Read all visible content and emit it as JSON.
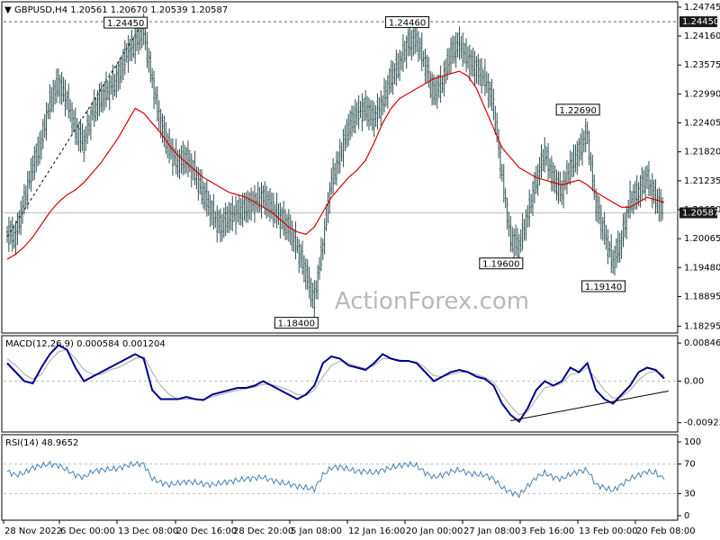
{
  "colors": {
    "background": "#ffffff",
    "candle": "#2f4f4f",
    "ma": "#d80000",
    "macd": "#00008b",
    "signal": "#a9a9a9",
    "rsi": "#4682b4",
    "border": "#000000",
    "grid": "#c0c0c0",
    "watermark": "#b8b8b8"
  },
  "chart_data": [
    {
      "type": "line",
      "panel": "price",
      "header": "GBPUSD,H4  1.20561 1.20670 1.20539 1.20587",
      "watermark": "ActionForex.com",
      "ylim": [
        1.1823,
        1.2478
      ],
      "y_ticks": [
        "1.24745",
        "1.24160",
        "1.23575",
        "1.22990",
        "1.22405",
        "1.21820",
        "1.21235",
        "1.20650",
        "1.20065",
        "1.19480",
        "1.18895",
        "1.18295"
      ],
      "current_price": "1.20587",
      "ref_level": "1.24450",
      "close_series": [
        1.202,
        1.201,
        1.208,
        1.215,
        1.22,
        1.228,
        1.232,
        1.229,
        1.223,
        1.22,
        1.226,
        1.229,
        1.231,
        1.233,
        1.238,
        1.24,
        1.243,
        1.233,
        1.224,
        1.219,
        1.216,
        1.217,
        1.214,
        1.21,
        1.206,
        1.203,
        1.205,
        1.206,
        1.207,
        1.208,
        1.209,
        1.207,
        1.205,
        1.203,
        1.199,
        1.194,
        1.188,
        1.199,
        1.212,
        1.217,
        1.223,
        1.226,
        1.227,
        1.225,
        1.228,
        1.233,
        1.236,
        1.24,
        1.241,
        1.236,
        1.23,
        1.232,
        1.238,
        1.24,
        1.237,
        1.235,
        1.233,
        1.228,
        1.214,
        1.201,
        1.199,
        1.205,
        1.212,
        1.218,
        1.213,
        1.21,
        1.215,
        1.218,
        1.222,
        1.208,
        1.202,
        1.196,
        1.2,
        1.208,
        1.21,
        1.213,
        1.209,
        1.2059
      ],
      "ma_series": [
        1.1965,
        1.1975,
        1.199,
        1.201,
        1.2035,
        1.206,
        1.208,
        1.2095,
        1.2105,
        1.212,
        1.214,
        1.216,
        1.2185,
        1.221,
        1.224,
        1.227,
        1.226,
        1.224,
        1.222,
        1.2195,
        1.2175,
        1.216,
        1.2145,
        1.213,
        1.212,
        1.211,
        1.21,
        1.2095,
        1.209,
        1.208,
        1.207,
        1.206,
        1.2045,
        1.203,
        1.202,
        1.2015,
        1.203,
        1.206,
        1.209,
        1.211,
        1.213,
        1.2145,
        1.2165,
        1.22,
        1.224,
        1.227,
        1.229,
        1.23,
        1.231,
        1.232,
        1.233,
        1.2335,
        1.234,
        1.2345,
        1.2335,
        1.231,
        1.227,
        1.223,
        1.219,
        1.217,
        1.215,
        1.214,
        1.213,
        1.2125,
        1.212,
        1.2115,
        1.212,
        1.2125,
        1.2115,
        1.21,
        1.209,
        1.208,
        1.207,
        1.207,
        1.208,
        1.209,
        1.2085,
        1.208
      ],
      "annotations": [
        {
          "label": "1.24450",
          "x_index": 16,
          "y": 1.2445
        },
        {
          "label": "1.24460",
          "x_index": 49,
          "y": 1.2446
        },
        {
          "label": "1.18400",
          "x_index": 36,
          "y": 1.184
        },
        {
          "label": "1.19600",
          "x_index": 60,
          "y": 1.196
        },
        {
          "label": "1.22690",
          "x_index": 69,
          "y": 1.2269
        },
        {
          "label": "1.19140",
          "x_index": 72,
          "y": 1.1914
        }
      ],
      "x_tick_labels": [
        "28 Nov 2022",
        "6 Dec 00:00",
        "13 Dec 08:00",
        "20 Dec 16:00",
        "28 Dec 20:00",
        "5 Jan 08:00",
        "12 Jan 16:00",
        "20 Jan 00:00",
        "27 Jan 08:00",
        "3 Feb 16:00",
        "13 Feb 00:00",
        "20 Feb 08:00"
      ]
    },
    {
      "type": "line",
      "panel": "macd",
      "header": "MACD(12,26,9) 0.000584 0.001204",
      "ylim": [
        -0.0105,
        0.0093
      ],
      "y_ticks": [
        "0.008467",
        "0.00",
        "-0.009233"
      ],
      "macd_series": [
        0.004,
        0.002,
        0.0,
        -0.0005,
        0.003,
        0.006,
        0.008,
        0.007,
        0.003,
        0.0,
        0.001,
        0.002,
        0.003,
        0.004,
        0.005,
        0.006,
        0.005,
        -0.002,
        -0.004,
        -0.004,
        -0.004,
        -0.0035,
        -0.004,
        -0.0042,
        -0.003,
        -0.0025,
        -0.002,
        -0.0015,
        -0.0015,
        -0.001,
        0.0,
        -0.001,
        -0.002,
        -0.003,
        -0.004,
        -0.003,
        -0.001,
        0.004,
        0.0055,
        0.005,
        0.0035,
        0.003,
        0.0025,
        0.004,
        0.006,
        0.005,
        0.0045,
        0.0045,
        0.004,
        0.002,
        0.0,
        0.001,
        0.002,
        0.0025,
        0.002,
        0.001,
        0.0005,
        -0.001,
        -0.005,
        -0.0075,
        -0.009,
        -0.006,
        -0.002,
        0.0,
        -0.001,
        0.0,
        0.003,
        0.002,
        0.004,
        -0.002,
        -0.004,
        -0.005,
        -0.003,
        -0.001,
        0.002,
        0.003,
        0.0025,
        0.0006
      ],
      "signal_series": [
        0.005,
        0.0035,
        0.0015,
        0.0005,
        0.0015,
        0.0045,
        0.0065,
        0.007,
        0.005,
        0.0025,
        0.0015,
        0.0015,
        0.0025,
        0.003,
        0.004,
        0.005,
        0.0055,
        0.002,
        -0.001,
        -0.003,
        -0.004,
        -0.004,
        -0.004,
        -0.004,
        -0.0035,
        -0.003,
        -0.0025,
        -0.002,
        -0.0017,
        -0.0013,
        -0.0007,
        -0.0008,
        -0.0013,
        -0.002,
        -0.003,
        -0.0032,
        -0.002,
        0.001,
        0.0035,
        0.0045,
        0.004,
        0.0033,
        0.0028,
        0.0035,
        0.005,
        0.005,
        0.0047,
        0.0045,
        0.0042,
        0.003,
        0.0012,
        0.001,
        0.0015,
        0.002,
        0.002,
        0.0015,
        0.0008,
        -0.0002,
        -0.003,
        -0.0055,
        -0.0075,
        -0.0068,
        -0.004,
        -0.0015,
        -0.001,
        -0.0005,
        0.0015,
        0.0018,
        0.003,
        0.0005,
        -0.002,
        -0.0038,
        -0.0035,
        -0.002,
        0.0002,
        0.0018,
        0.0022,
        0.0012
      ],
      "trendline": {
        "from": {
          "x_index": 59,
          "y": -0.0088
        },
        "to": {
          "x_index": 77.5,
          "y": -0.0022
        }
      }
    },
    {
      "type": "line",
      "panel": "rsi",
      "header": "RSI(14) 48.9652",
      "ylim": [
        0,
        100
      ],
      "y_ticks": [
        "100",
        "70",
        "30",
        "0"
      ],
      "levels": [
        70,
        30
      ],
      "rsi_series": [
        60,
        55,
        58,
        65,
        68,
        70,
        68,
        62,
        55,
        52,
        60,
        62,
        63,
        64,
        68,
        70,
        70,
        50,
        45,
        42,
        44,
        46,
        45,
        43,
        42,
        44,
        46,
        48,
        50,
        51,
        52,
        48,
        45,
        43,
        40,
        38,
        36,
        55,
        65,
        66,
        63,
        60,
        60,
        58,
        62,
        65,
        68,
        70,
        68,
        58,
        52,
        55,
        60,
        62,
        58,
        56,
        55,
        50,
        38,
        32,
        28,
        40,
        52,
        58,
        52,
        50,
        56,
        60,
        62,
        42,
        38,
        34,
        42,
        50,
        55,
        60,
        58,
        49
      ]
    }
  ]
}
